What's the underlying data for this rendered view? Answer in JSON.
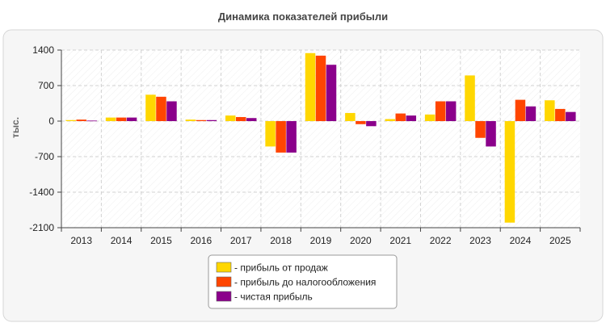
{
  "chart_data": {
    "type": "bar",
    "title": "Динамика показателей прибыли",
    "ylabel": "тыс.",
    "xlabel": "",
    "categories": [
      "2013",
      "2014",
      "2015",
      "2016",
      "2017",
      "2018",
      "2019",
      "2020",
      "2021",
      "2022",
      "2023",
      "2024",
      "2025"
    ],
    "series": [
      {
        "name": "- прибыль от продаж",
        "color": "#FFD700",
        "values": [
          20,
          70,
          520,
          30,
          110,
          -500,
          1340,
          160,
          40,
          130,
          900,
          -2000,
          410
        ]
      },
      {
        "name": "- прибыль до налогообложения",
        "color": "#FF4500",
        "values": [
          30,
          70,
          480,
          20,
          80,
          -620,
          1290,
          -60,
          150,
          390,
          -330,
          420,
          240
        ]
      },
      {
        "name": "- чистая прибыль",
        "color": "#8B008B",
        "values": [
          10,
          70,
          390,
          20,
          60,
          -620,
          1110,
          -100,
          110,
          390,
          -500,
          290,
          180
        ]
      }
    ],
    "ylim": [
      -2100,
      1400
    ],
    "yticks": [
      1400,
      700,
      0,
      -700,
      -1400,
      -2100
    ],
    "ytick_labels": [
      "1400",
      "700",
      "0",
      "-700",
      "-1400",
      "-2100"
    ],
    "grid": true,
    "legend_position": "bottom-center"
  }
}
